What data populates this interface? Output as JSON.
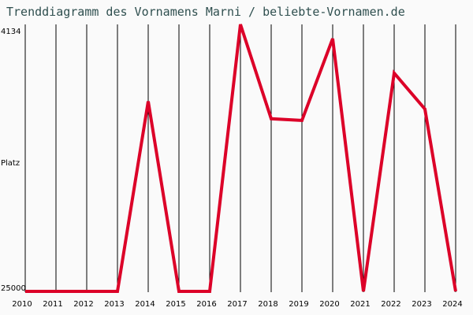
{
  "title": "Trenddiagramm des Vornamens Marni / beliebte-Vornamen.de",
  "colors": {
    "line": "#dc0028",
    "title": "#2f4f4f",
    "grid": "#000000",
    "background": "#fafafa"
  },
  "chart_data": {
    "type": "line",
    "title": "Trenddiagramm des Vornamens Marni / beliebte-Vornamen.de",
    "xlabel": "",
    "ylabel": "Platz",
    "y_tick_labels": [
      "4134",
      "25000"
    ],
    "ylim": [
      25000,
      4134
    ],
    "y_inverted": true,
    "grid": "vertical",
    "legend": "none",
    "categories": [
      "2010",
      "2011",
      "2012",
      "2013",
      "2014",
      "2015",
      "2016",
      "2017",
      "2018",
      "2019",
      "2020",
      "2021",
      "2022",
      "2023",
      "2024"
    ],
    "series": [
      {
        "name": "Marni",
        "values": [
          25000,
          25000,
          25000,
          25000,
          10150,
          25000,
          25000,
          4134,
          11510,
          11640,
          5250,
          25000,
          7940,
          10750,
          25000
        ]
      }
    ]
  },
  "axis": {
    "ytop": "4134",
    "ymid": "Platz",
    "ybottom": "25000"
  }
}
